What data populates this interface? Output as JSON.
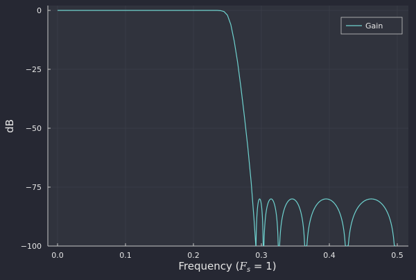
{
  "chart_data": {
    "type": "line",
    "title": "",
    "xlabel": "Frequency (F_s = 1)",
    "xlabel_parts": {
      "prefix": "Frequency (",
      "var": "F",
      "sub": "s",
      "suffix": " = 1)"
    },
    "ylabel": "dB",
    "xlim": [
      -0.015,
      0.515
    ],
    "ylim": [
      -100,
      1.5
    ],
    "xticks": [
      0.0,
      0.1,
      0.2,
      0.3,
      0.4,
      0.5
    ],
    "xtick_labels": [
      "0.0",
      "0.1",
      "0.2",
      "0.3",
      "0.4",
      "0.5"
    ],
    "yticks": [
      0,
      -25,
      -50,
      -75,
      -100
    ],
    "ytick_labels": [
      "0",
      "−25",
      "−50",
      "−75",
      "−100"
    ],
    "grid": true,
    "legend_position": "top-right",
    "series": [
      {
        "name": "Gain",
        "color": "#6fd3d0",
        "passband": [
          [
            0.0,
            0
          ],
          [
            0.235,
            0
          ],
          [
            0.24,
            -0.1
          ],
          [
            0.245,
            -0.5
          ]
        ],
        "transition": [
          [
            0.245,
            -0.5
          ],
          [
            0.25,
            -2
          ],
          [
            0.255,
            -6
          ],
          [
            0.26,
            -13
          ],
          [
            0.265,
            -22
          ],
          [
            0.27,
            -33
          ],
          [
            0.275,
            -45
          ],
          [
            0.28,
            -58
          ],
          [
            0.285,
            -73
          ],
          [
            0.289,
            -88
          ],
          [
            0.2918,
            -100
          ]
        ],
        "stopband_zeros": [
          0.2918,
          0.303,
          0.3255,
          0.365,
          0.4255,
          0.498
        ],
        "stopband_peak_db": -80
      }
    ]
  },
  "colors": {
    "background": "#262833",
    "plot_area": "#30333d",
    "grid": "#3c3f4a",
    "axis": "#c8c8c8"
  }
}
